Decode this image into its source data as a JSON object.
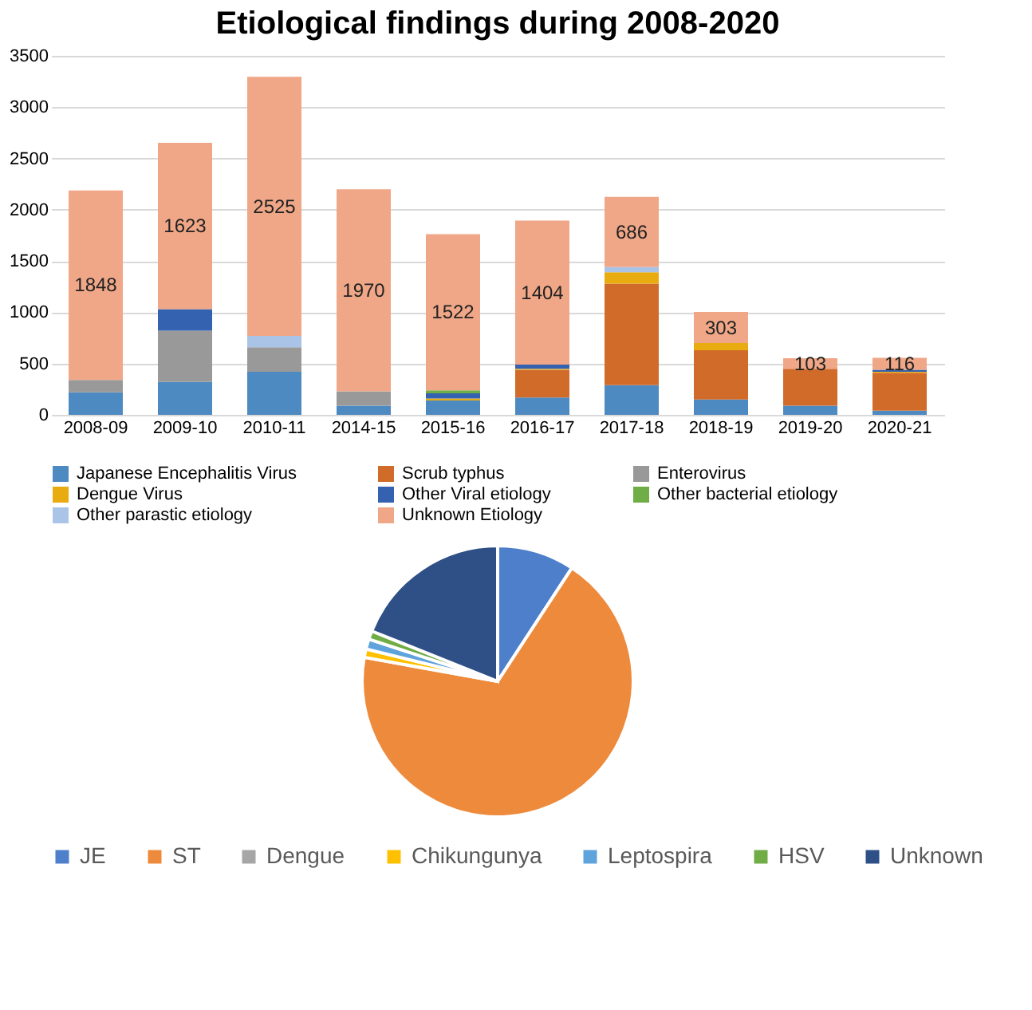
{
  "chart_data": [
    {
      "type": "bar",
      "title": "Etiological findings during 2008-2020",
      "stacked": true,
      "categories": [
        "2008-09",
        "2009-10",
        "2010-11",
        "2014-15",
        "2015-16",
        "2016-17",
        "2017-18",
        "2018-19",
        "2019-20",
        "2020-21"
      ],
      "series": [
        {
          "name": "Japanese Encephalitis Virus",
          "color": "#4e8ac2",
          "values": [
            220,
            320,
            420,
            90,
            140,
            170,
            290,
            150,
            90,
            40
          ]
        },
        {
          "name": "Scrub typhus",
          "color": "#d16b2a",
          "values": [
            0,
            0,
            0,
            0,
            0,
            270,
            990,
            480,
            360,
            370
          ]
        },
        {
          "name": "Enterovirus",
          "color": "#999999",
          "values": [
            120,
            500,
            240,
            140,
            0,
            0,
            0,
            0,
            0,
            0
          ]
        },
        {
          "name": "Dengue Virus",
          "color": "#e8ac10",
          "values": [
            0,
            0,
            0,
            0,
            20,
            10,
            110,
            70,
            null,
            10
          ]
        },
        {
          "name": "Other Viral etiology",
          "color": "#3562b0",
          "values": [
            0,
            210,
            0,
            0,
            50,
            40,
            0,
            0,
            0,
            20
          ]
        },
        {
          "name": "Other bacterial etiology",
          "color": "#70ad47",
          "values": [
            0,
            0,
            0,
            0,
            30,
            0,
            0,
            0,
            0,
            0
          ]
        },
        {
          "name": "Other parastic etiology",
          "color": "#a9c4e6",
          "values": [
            0,
            0,
            110,
            0,
            0,
            null,
            50,
            null,
            0,
            0
          ]
        },
        {
          "name": "Unknown Etiology",
          "color": "#f0a787",
          "values": [
            1848,
            1623,
            2525,
            1970,
            1522,
            1404,
            686,
            303,
            103,
            116
          ],
          "value_labels": [
            "1848",
            "1623",
            "2525",
            "1970",
            "1522",
            "1404",
            "686",
            "303",
            "103",
            "116"
          ]
        }
      ],
      "ylim": [
        0,
        3500
      ],
      "yticks": [
        0,
        500,
        1000,
        1500,
        2000,
        2500,
        3000,
        3500
      ],
      "grid": "y",
      "legend": "bottom"
    },
    {
      "type": "pie",
      "categories": [
        "JE",
        "ST",
        "Dengue",
        "Chikungunya",
        "Leptospira",
        "HSV",
        "Unknown"
      ],
      "values": [
        9.2,
        68.4,
        null,
        1.0,
        1.2,
        1.0,
        18.9
      ],
      "colors": [
        "#4e7fcb",
        "#ee8a3c",
        "#a6a6a6",
        "#ffc000",
        "#5fa3dc",
        "#70ad47",
        "#2f5086"
      ],
      "legend": "bottom"
    }
  ]
}
